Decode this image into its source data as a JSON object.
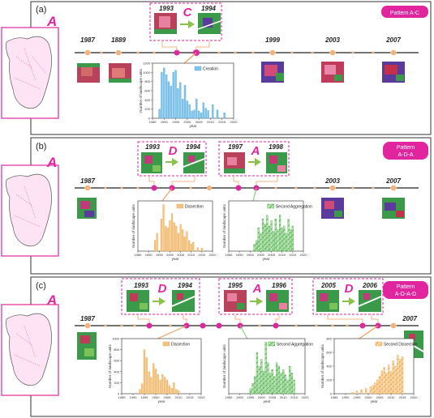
{
  "colors": {
    "magenta": "#e0259e",
    "panel_border": "#555555",
    "timeline": "#222222",
    "orange_node": "#f0a060",
    "blue_bar": "#7cc4ec",
    "orange_bar": "#f6c27c",
    "green_bar": "#8cd48c",
    "hatch_orange": "#f0b05a"
  },
  "panels": [
    {
      "label": "(a)",
      "badge_lines": [
        "Pattern A-C"
      ],
      "big_letter": "A",
      "years": [
        "1987",
        "1889",
        "1999",
        "2003",
        "2007"
      ],
      "transitions": [
        {
          "from_year": "1993",
          "to_year": "1994",
          "letter": "C"
        }
      ]
    },
    {
      "label": "(b)",
      "badge_lines": [
        "Pattern",
        "A-D-A"
      ],
      "big_letter": "A",
      "years": [
        "1987",
        "2003",
        "2007"
      ],
      "transitions": [
        {
          "from_year": "1993",
          "to_year": "1994",
          "letter": "D"
        },
        {
          "from_year": "1997",
          "to_year": "1998",
          "letter": "A"
        }
      ]
    },
    {
      "label": "(c)",
      "badge_lines": [
        "Pattern",
        "A-D-A-D"
      ],
      "big_letter": "A",
      "years": [
        "1987",
        "2007"
      ],
      "transitions": [
        {
          "from_year": "1993",
          "to_year": "1994",
          "letter": "D"
        },
        {
          "from_year": "1995",
          "to_year": "1996",
          "letter": "A"
        },
        {
          "from_year": "2005",
          "to_year": "2006",
          "letter": "D"
        }
      ]
    }
  ],
  "chart_data": [
    {
      "type": "bar",
      "panel": "a",
      "legend": "Creation",
      "ylabel": "Number of landscape units",
      "xlabel": "year",
      "ylim": [
        0,
        1200
      ],
      "yticks": [
        "0",
        "200",
        "400",
        "600",
        "800",
        "1000",
        "1200"
      ],
      "xticks": [
        "1985",
        "1990",
        "1995",
        "2000",
        "2005",
        "2010",
        "2015",
        "2020"
      ],
      "x": [
        1988,
        1989,
        1990,
        1991,
        1992,
        1993,
        1994,
        1995,
        1996,
        1997,
        1998,
        1999,
        2000,
        2001,
        2002,
        2003,
        2004,
        2005,
        2006,
        2007,
        2008,
        2009,
        2011,
        2013,
        2016
      ],
      "values": [
        200,
        1000,
        1100,
        950,
        800,
        700,
        1000,
        1050,
        650,
        780,
        420,
        720,
        380,
        300,
        160,
        180,
        420,
        160,
        120,
        340,
        220,
        170,
        300,
        180,
        120
      ]
    },
    {
      "type": "bar",
      "panel": "b-left",
      "legend": "Dissection",
      "ylabel": "Number of landscape units",
      "xlabel": "year",
      "ylim": [
        0,
        1400
      ],
      "yticks": [],
      "xticks": [
        "1985",
        "1990",
        "1995",
        "2000",
        "2005",
        "2010",
        "2015",
        "2020"
      ],
      "x": [
        1993,
        1994,
        1996,
        1997,
        1998,
        1999,
        2000,
        2001,
        2002,
        2003,
        2004,
        2005,
        2006,
        2007,
        2008,
        2009,
        2010,
        2011,
        2013,
        2015
      ],
      "values": [
        300,
        500,
        900,
        1300,
        700,
        650,
        850,
        1050,
        800,
        700,
        500,
        750,
        600,
        400,
        550,
        300,
        200,
        250,
        100,
        80
      ]
    },
    {
      "type": "bar",
      "panel": "b-right",
      "legend": "Second Aggregation",
      "ylabel": "Number of landscape units",
      "xlabel": "year",
      "ylim": [
        0,
        1400
      ],
      "yticks": [],
      "xticks": [
        "1985",
        "1990",
        "1995",
        "2000",
        "2005",
        "2010",
        "2015",
        "2020"
      ],
      "x": [
        1997,
        1998,
        1999,
        2000,
        2001,
        2002,
        2003,
        2004,
        2005,
        2006,
        2007,
        2008,
        2009,
        2010,
        2011,
        2012,
        2013,
        2014,
        2015
      ],
      "values": [
        200,
        300,
        650,
        500,
        900,
        750,
        1000,
        700,
        850,
        550,
        900,
        600,
        1000,
        650,
        700,
        500,
        900,
        600,
        700
      ]
    },
    {
      "type": "bar",
      "panel": "c-left",
      "legend": "Dissection",
      "ylabel": "Number of landscape units",
      "xlabel": "year",
      "ylim": [
        0,
        1000
      ],
      "yticks": [
        "0",
        "200",
        "400",
        "600",
        "800",
        "1000"
      ],
      "xticks": [
        "1985",
        "1990",
        "1995",
        "2000",
        "2005",
        "2010",
        "2015",
        "2020"
      ],
      "x": [
        1993,
        1994,
        1995,
        1996,
        1997,
        1998,
        1999,
        2000,
        2001,
        2002,
        2003,
        2004,
        2005,
        2006,
        2007,
        2008,
        2009,
        2010
      ],
      "values": [
        80,
        180,
        800,
        650,
        400,
        300,
        550,
        450,
        350,
        250,
        350,
        300,
        250,
        150,
        100,
        200,
        80,
        60
      ]
    },
    {
      "type": "bar",
      "panel": "c-middle",
      "legend": "Second Aggregation",
      "ylabel": "Number of landscape units",
      "xlabel": "year",
      "ylim": [
        0,
        1600
      ],
      "yticks": [],
      "xticks": [
        "1985",
        "1990",
        "1995",
        "2000",
        "2005",
        "2010",
        "2015",
        "2020"
      ],
      "x": [
        1995,
        1996,
        1997,
        1998,
        1999,
        2000,
        2001,
        2002,
        2003,
        2004,
        2005,
        2006,
        2007,
        2008,
        2009,
        2010,
        2011,
        2012,
        2013,
        2014,
        2015
      ],
      "values": [
        150,
        300,
        500,
        1200,
        800,
        1000,
        650,
        1500,
        900,
        600,
        700,
        500,
        900,
        800,
        600,
        700,
        550,
        400,
        800,
        600,
        400
      ]
    },
    {
      "type": "bar",
      "panel": "c-right",
      "legend": "Second Dissection",
      "ylabel": "Number of landscape units",
      "xlabel": "year",
      "ylim": [
        0,
        800
      ],
      "yticks": [
        "0",
        "200",
        "400",
        "600",
        "800"
      ],
      "xticks": [
        "1985",
        "1990",
        "1995",
        "2000",
        "2005",
        "2010",
        "2015",
        "2020"
      ],
      "x": [
        1993,
        1995,
        1997,
        1999,
        2001,
        2002,
        2003,
        2004,
        2005,
        2006,
        2007,
        2008,
        2009,
        2010,
        2011,
        2012,
        2013,
        2014,
        2015
      ],
      "values": [
        20,
        40,
        60,
        80,
        100,
        120,
        160,
        200,
        250,
        330,
        380,
        300,
        420,
        320,
        480,
        400,
        560,
        500,
        540
      ]
    }
  ]
}
